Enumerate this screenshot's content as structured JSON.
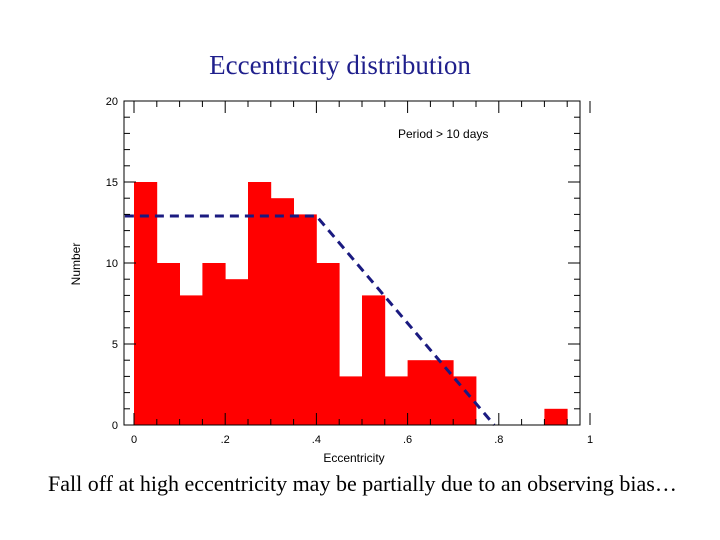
{
  "slide": {
    "title": "Eccentricity distribution",
    "caption": "Fall off at high eccentricity may be partially due to an observing bias…"
  },
  "chart_data": {
    "type": "bar",
    "xlabel": "Eccentricity",
    "ylabel": "Number",
    "annotation": "Period > 10 days",
    "xlim": [
      0,
      1
    ],
    "ylim": [
      0,
      20
    ],
    "bin_width": 0.05,
    "bin_starts": [
      0,
      0.05,
      0.1,
      0.15,
      0.2,
      0.25,
      0.3,
      0.35,
      0.4,
      0.45,
      0.5,
      0.55,
      0.6,
      0.65,
      0.7,
      0.75,
      0.8,
      0.85,
      0.9,
      0.95
    ],
    "values": [
      15,
      10,
      8,
      10,
      9,
      15,
      14,
      13,
      10,
      3,
      8,
      3,
      4,
      4,
      3,
      0,
      0,
      0,
      1,
      0
    ],
    "x_ticks": [
      {
        "value": 0,
        "label": "0"
      },
      {
        "value": 0.2,
        "label": ".2"
      },
      {
        "value": 0.4,
        "label": ".4"
      },
      {
        "value": 0.6,
        "label": ".6"
      },
      {
        "value": 0.8,
        "label": ".8"
      },
      {
        "value": 1,
        "label": "1"
      }
    ],
    "y_ticks": [
      {
        "value": 0,
        "label": "0"
      },
      {
        "value": 5,
        "label": "5"
      },
      {
        "value": 10,
        "label": "10"
      },
      {
        "value": 15,
        "label": "15"
      },
      {
        "value": 20,
        "label": "20"
      }
    ],
    "fit_line": {
      "x": [
        -0.02,
        0.4,
        0.79
      ],
      "y": [
        12.9,
        12.9,
        0
      ]
    },
    "colors": {
      "bars": "#ff0000",
      "fit_line": "#1a1a80",
      "axes": "#000000"
    }
  }
}
